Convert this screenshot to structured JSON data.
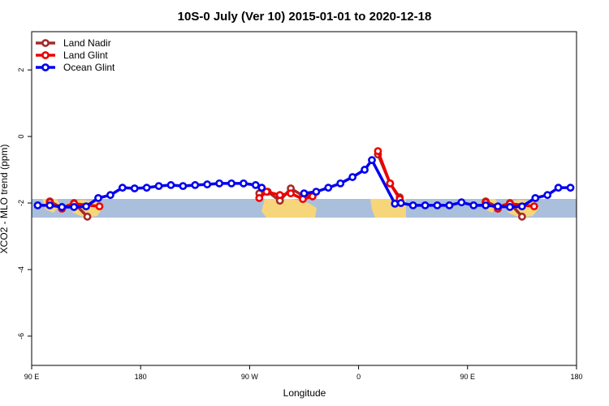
{
  "chart_data": {
    "type": "line",
    "title": "10S-0 July (Ver 10)   2015-01-01 to 2020-12-18",
    "xlabel": "Longitude",
    "ylabel": "XCO2 - MLO trend (ppm)",
    "xlim": [
      90,
      540
    ],
    "ylim": [
      -6.88,
      3.15
    ],
    "xticks": [
      {
        "value": 90,
        "label": "90 E"
      },
      {
        "value": 180,
        "label": "180"
      },
      {
        "value": 270,
        "label": "90 W"
      },
      {
        "value": 360,
        "label": "0"
      },
      {
        "value": 450,
        "label": "90 E"
      },
      {
        "value": 540,
        "label": "180"
      }
    ],
    "yticks": [
      2,
      0,
      -2,
      -4,
      -6
    ],
    "legend": "top-left",
    "series": [
      {
        "name": "Land Nadir",
        "color": "#a52a2a",
        "x": [
          105,
          115,
          125,
          136,
          200,
          278,
          285,
          295,
          304,
          314,
          322,
          350,
          376,
          386,
          394,
          430,
          465,
          475,
          485,
          495
        ],
        "values": [
          -1.95,
          -2.15,
          -2.0,
          -2.41,
          null,
          -1.71,
          -1.66,
          -1.93,
          -1.56,
          -1.78,
          -1.76,
          null,
          -0.54,
          -1.41,
          -1.83,
          null,
          -1.95,
          -2.12,
          -2.0,
          -2.41
        ]
      },
      {
        "name": "Land Glint",
        "color": "#ee0000",
        "x": [
          105,
          115,
          125,
          146,
          200,
          278,
          284,
          295,
          304,
          314,
          322,
          350,
          376,
          386,
          394,
          430,
          465,
          475,
          485,
          505
        ],
        "values": [
          -1.98,
          -2.17,
          -2.02,
          -2.1,
          null,
          -1.85,
          -1.66,
          -1.76,
          -1.71,
          -1.88,
          -1.8,
          null,
          -0.44,
          -1.41,
          -1.88,
          null,
          -1.98,
          -2.17,
          -2.02,
          -2.1
        ]
      },
      {
        "name": "Ocean Glint",
        "color": "#0000ee",
        "x": [
          95,
          105,
          115,
          125,
          135,
          145,
          155,
          165,
          175,
          185,
          195,
          205,
          215,
          225,
          235,
          245,
          255,
          265,
          275,
          280,
          300,
          315,
          325,
          335,
          345,
          355,
          365,
          371,
          390,
          395,
          405,
          415,
          425,
          435,
          445,
          455,
          465,
          475,
          485,
          495,
          506,
          516,
          525,
          535
        ],
        "values": [
          -2.07,
          -2.07,
          -2.12,
          -2.12,
          -2.1,
          -1.85,
          -1.76,
          -1.54,
          -1.56,
          -1.54,
          -1.49,
          -1.46,
          -1.49,
          -1.46,
          -1.44,
          -1.41,
          -1.41,
          -1.41,
          -1.46,
          -1.54,
          null,
          -1.71,
          -1.66,
          -1.54,
          -1.41,
          -1.22,
          -1.0,
          -0.71,
          -2.02,
          -2.0,
          -2.07,
          -2.07,
          -2.07,
          -2.07,
          -1.98,
          -2.07,
          -2.07,
          -2.1,
          -2.12,
          -2.1,
          -1.85,
          -1.76,
          -1.54,
          -1.54
        ]
      }
    ]
  }
}
